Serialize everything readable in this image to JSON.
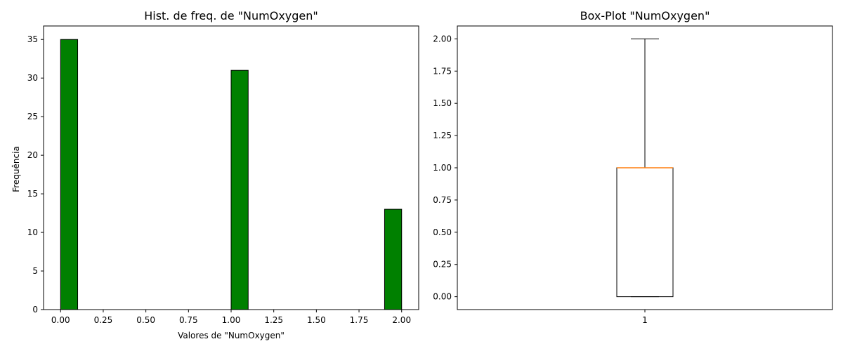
{
  "chart_data": [
    {
      "type": "bar",
      "title": "Hist. de freq. de \"NumOxygen\"",
      "xlabel": "Valores de \"NumOxygen\"",
      "ylabel": "Frequência",
      "xlim": [
        -0.1,
        2.1
      ],
      "ylim": [
        0,
        36.75
      ],
      "xticks": [
        0.0,
        0.25,
        0.5,
        0.75,
        1.0,
        1.25,
        1.5,
        1.75,
        2.0
      ],
      "xtick_labels": [
        "0.00",
        "0.25",
        "0.50",
        "0.75",
        "1.00",
        "1.25",
        "1.50",
        "1.75",
        "2.00"
      ],
      "yticks": [
        0,
        5,
        10,
        15,
        20,
        25,
        30,
        35
      ],
      "ytick_labels": [
        "0",
        "5",
        "10",
        "15",
        "20",
        "25",
        "30",
        "35"
      ],
      "bars": [
        {
          "x_start": 0.0,
          "x_end": 0.1,
          "value": 35
        },
        {
          "x_start": 1.0,
          "x_end": 1.1,
          "value": 31
        },
        {
          "x_start": 1.9,
          "x_end": 2.0,
          "value": 13
        }
      ],
      "bar_color": "#008000",
      "edge_color": "#000000",
      "grid": false
    },
    {
      "type": "box",
      "title": "Box-Plot \"NumOxygen\"",
      "xlabel": "",
      "ylabel": "",
      "ylim": [
        -0.1,
        2.1
      ],
      "yticks": [
        0.0,
        0.25,
        0.5,
        0.75,
        1.0,
        1.25,
        1.5,
        1.75,
        2.0
      ],
      "ytick_labels": [
        "0.00",
        "0.25",
        "0.50",
        "0.75",
        "1.00",
        "1.25",
        "1.50",
        "1.75",
        "2.00"
      ],
      "xlim": [
        0.5,
        1.5
      ],
      "xticks": [
        1
      ],
      "xtick_labels": [
        "1"
      ],
      "box": {
        "position": 1,
        "whisker_low": 0.0,
        "q1": 0.0,
        "median": 1.0,
        "q3": 1.0,
        "whisker_high": 2.0
      },
      "median_color": "#ff7f0e",
      "grid": false
    }
  ]
}
